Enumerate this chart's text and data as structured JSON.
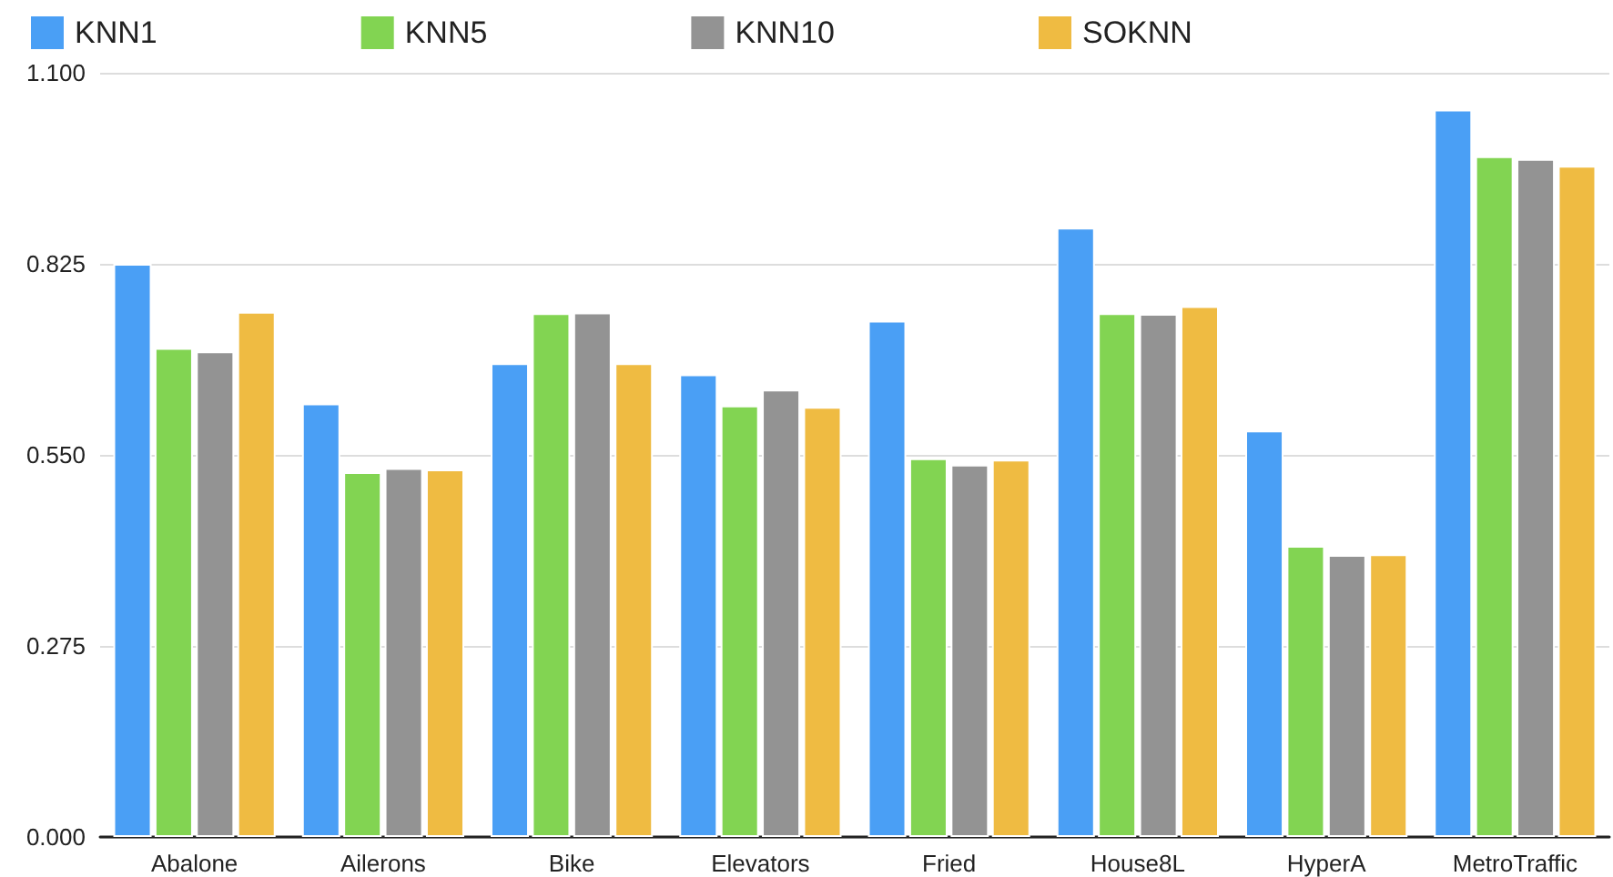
{
  "chart_data": {
    "type": "bar",
    "categories": [
      "Abalone",
      "Ailerons",
      "Bike",
      "Elevators",
      "Fried",
      "House8L",
      "HyperA",
      "MetroTraffic"
    ],
    "series": [
      {
        "name": "KNN1",
        "color": "#4a9ff5",
        "values": [
          0.825,
          0.624,
          0.682,
          0.666,
          0.743,
          0.877,
          0.585,
          1.047
        ]
      },
      {
        "name": "KNN5",
        "color": "#82d452",
        "values": [
          0.704,
          0.525,
          0.754,
          0.621,
          0.545,
          0.754,
          0.419,
          0.98
        ]
      },
      {
        "name": "KNN10",
        "color": "#939393",
        "values": [
          0.699,
          0.531,
          0.755,
          0.644,
          0.536,
          0.753,
          0.406,
          0.976
        ]
      },
      {
        "name": "SOKNN",
        "color": "#efbb42",
        "values": [
          0.756,
          0.529,
          0.682,
          0.619,
          0.543,
          0.764,
          0.407,
          0.966
        ]
      }
    ],
    "ylim": [
      0,
      1.1
    ],
    "yticks": [
      {
        "value": 0,
        "label": "0.000"
      },
      {
        "value": 0.275,
        "label": "0.275"
      },
      {
        "value": 0.55,
        "label": "0.550"
      },
      {
        "value": 0.825,
        "label": "0.825"
      },
      {
        "value": 1.1,
        "label": "1.100"
      }
    ],
    "grid": "y",
    "legend": "top left"
  }
}
